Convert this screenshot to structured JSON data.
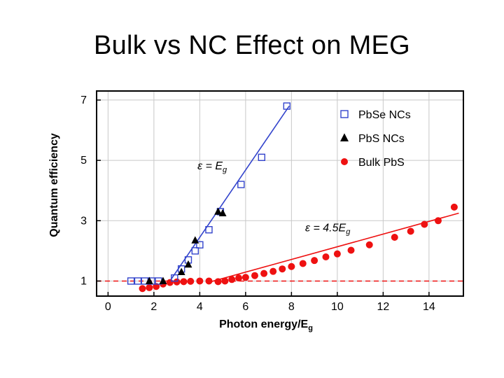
{
  "slide": {
    "title": "Bulk vs NC Effect on MEG"
  },
  "chart_data": {
    "type": "scatter",
    "xlabel": "Photon energy/E",
    "xlabel_sub": "g",
    "ylabel": "Quantum efficiency",
    "xlim": [
      -0.5,
      15.5
    ],
    "ylim": [
      0.5,
      7.3
    ],
    "xticks": [
      0,
      2,
      4,
      6,
      8,
      10,
      12,
      14
    ],
    "yticks": [
      1,
      3,
      5,
      7
    ],
    "grid": true,
    "legend_position": "top-right",
    "legend": [
      {
        "label": "PbSe NCs",
        "marker": "open-square",
        "color": "#3344cc"
      },
      {
        "label": "PbS NCs",
        "marker": "triangle",
        "color": "#000000"
      },
      {
        "label": "Bulk PbS",
        "marker": "circle",
        "color": "#ee1111"
      }
    ],
    "annotations": [
      {
        "text_main": "ε = E",
        "text_sub": "g",
        "x": 3.9,
        "y": 4.7
      },
      {
        "text_main": "ε = 4.5E",
        "text_sub": "g",
        "x": 8.6,
        "y": 2.65
      }
    ],
    "series": [
      {
        "name": "PbSe NCs",
        "marker": "open-square",
        "color": "#3344cc",
        "points": [
          [
            1.0,
            1.0
          ],
          [
            1.3,
            1.0
          ],
          [
            1.6,
            1.0
          ],
          [
            1.9,
            1.0
          ],
          [
            2.2,
            1.0
          ],
          [
            2.9,
            1.1
          ],
          [
            3.2,
            1.4
          ],
          [
            3.5,
            1.7
          ],
          [
            3.8,
            2.0
          ],
          [
            4.0,
            2.2
          ],
          [
            4.4,
            2.7
          ],
          [
            4.9,
            3.3
          ],
          [
            5.8,
            4.2
          ],
          [
            6.7,
            5.1
          ],
          [
            7.8,
            6.8
          ]
        ]
      },
      {
        "name": "PbS NCs",
        "marker": "triangle",
        "color": "#000000",
        "points": [
          [
            1.8,
            1.0
          ],
          [
            2.4,
            1.0
          ],
          [
            3.2,
            1.3
          ],
          [
            3.5,
            1.55
          ],
          [
            3.8,
            2.35
          ],
          [
            4.8,
            3.3
          ],
          [
            5.0,
            3.25
          ]
        ]
      },
      {
        "name": "Bulk PbS",
        "marker": "circle",
        "color": "#ee1111",
        "points": [
          [
            1.5,
            0.75
          ],
          [
            1.8,
            0.78
          ],
          [
            2.1,
            0.82
          ],
          [
            2.4,
            0.9
          ],
          [
            2.7,
            0.95
          ],
          [
            3.0,
            0.97
          ],
          [
            3.3,
            0.98
          ],
          [
            3.6,
            0.99
          ],
          [
            4.0,
            1.0
          ],
          [
            4.4,
            1.0
          ],
          [
            4.8,
            0.98
          ],
          [
            5.1,
            1.0
          ],
          [
            5.4,
            1.05
          ],
          [
            5.7,
            1.1
          ],
          [
            6.0,
            1.12
          ],
          [
            6.4,
            1.18
          ],
          [
            6.8,
            1.25
          ],
          [
            7.2,
            1.32
          ],
          [
            7.6,
            1.4
          ],
          [
            8.0,
            1.48
          ],
          [
            8.5,
            1.58
          ],
          [
            9.0,
            1.68
          ],
          [
            9.5,
            1.8
          ],
          [
            10.0,
            1.9
          ],
          [
            10.6,
            2.02
          ],
          [
            11.4,
            2.2
          ],
          [
            12.5,
            2.45
          ],
          [
            13.2,
            2.65
          ],
          [
            13.8,
            2.88
          ],
          [
            14.4,
            3.0
          ],
          [
            15.1,
            3.45
          ]
        ]
      }
    ],
    "fit_lines": [
      {
        "label": "ε = E",
        "color": "#3344cc",
        "x": [
          2.7,
          7.9
        ],
        "y": [
          1.0,
          6.8
        ]
      },
      {
        "label": "ε = 4.5E",
        "color": "#ee1111",
        "x": [
          4.5,
          15.3
        ],
        "y": [
          0.98,
          3.25
        ]
      }
    ],
    "reference_line": {
      "y": 1.0,
      "color": "#ee1111",
      "style": "dashed"
    }
  }
}
